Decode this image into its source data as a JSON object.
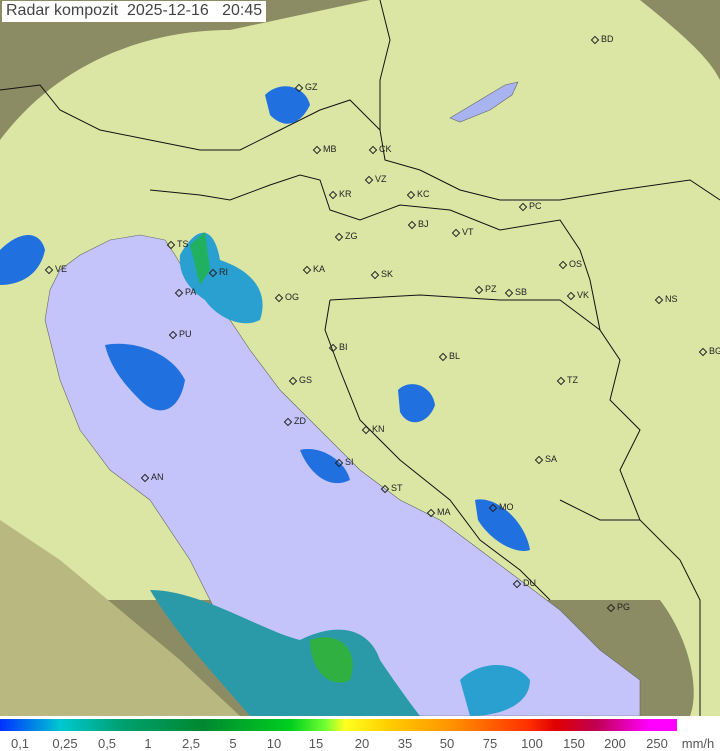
{
  "title": {
    "label": "Radar kompozit",
    "date": "2025-12-16",
    "time": "20:45"
  },
  "colors": {
    "sea": "#c4c4fa",
    "land": "#dbe6a4",
    "outside_coverage": "#8c8c64",
    "border": "#111111"
  },
  "cities": [
    {
      "code": "GZ"
    },
    {
      "code": "MB"
    },
    {
      "code": "CK"
    },
    {
      "code": "VZ"
    },
    {
      "code": "KR"
    },
    {
      "code": "KC"
    },
    {
      "code": "ZG"
    },
    {
      "code": "BJ"
    },
    {
      "code": "VT"
    },
    {
      "code": "PC"
    },
    {
      "code": "BD"
    },
    {
      "code": "TS"
    },
    {
      "code": "VE"
    },
    {
      "code": "RI"
    },
    {
      "code": "PA"
    },
    {
      "code": "KA"
    },
    {
      "code": "SK"
    },
    {
      "code": "OG"
    },
    {
      "code": "PU"
    },
    {
      "code": "PZ"
    },
    {
      "code": "SB"
    },
    {
      "code": "OS"
    },
    {
      "code": "VK"
    },
    {
      "code": "NS"
    },
    {
      "code": "BG"
    },
    {
      "code": "BI"
    },
    {
      "code": "BL"
    },
    {
      "code": "GS"
    },
    {
      "code": "TZ"
    },
    {
      "code": "ZD"
    },
    {
      "code": "KN"
    },
    {
      "code": "SA"
    },
    {
      "code": "SI"
    },
    {
      "code": "AN"
    },
    {
      "code": "ST"
    },
    {
      "code": "MA"
    },
    {
      "code": "MO"
    },
    {
      "code": "DU"
    },
    {
      "code": "PG"
    }
  ],
  "legend": {
    "labels": [
      "0,1",
      "0,25",
      "0,5",
      "1",
      "2,5",
      "5",
      "10",
      "15",
      "20",
      "35",
      "50",
      "75",
      "100",
      "150",
      "200",
      "250"
    ],
    "unit": "mm/h"
  }
}
